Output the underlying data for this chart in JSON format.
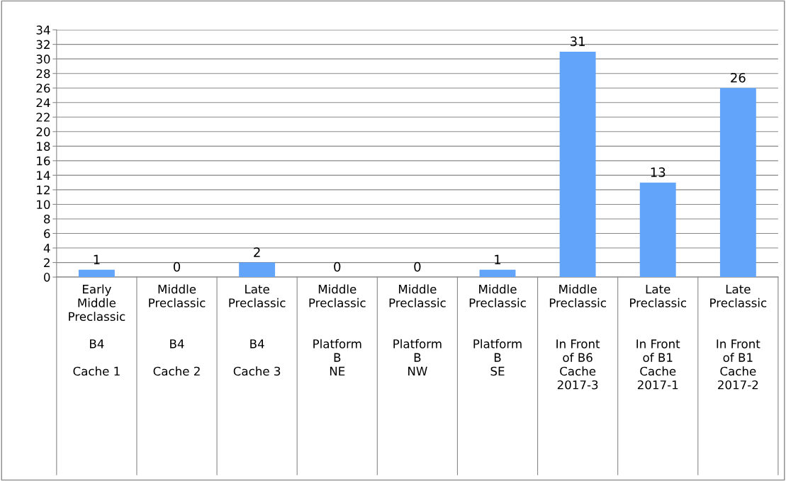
{
  "chart_data": {
    "type": "bar",
    "categories": [
      "Early\nMiddle\nPreclassic\n\nB4\n\nCache 1",
      "Middle\nPreclassic\n\n\nB4\n\nCache 2",
      "Late\nPreclassic\n\n\nB4\n\nCache 3",
      "Middle\nPreclassic\n\n\nPlatform\nB\nNE",
      "Middle\nPreclassic\n\n\nPlatform\nB\nNW",
      "Middle\nPreclassic\n\n\nPlatform\nB\nSE",
      "Middle\nPreclassic\n\n\nIn Front\nof B6\nCache\n2017-3",
      "Late\nPreclassic\n\n\nIn Front\nof B1\nCache\n2017-1",
      "Late\nPreclassic\n\n\nIn Front\nof B1\nCache\n2017-2"
    ],
    "values": [
      1,
      0,
      2,
      0,
      0,
      1,
      31,
      13,
      26
    ],
    "color": "#62a4fa",
    "ylim": [
      0,
      34
    ],
    "yticks": [
      0,
      2,
      4,
      6,
      8,
      10,
      12,
      14,
      16,
      18,
      20,
      22,
      24,
      26,
      28,
      30,
      32,
      34
    ],
    "grid": "y",
    "data_labels": true
  }
}
